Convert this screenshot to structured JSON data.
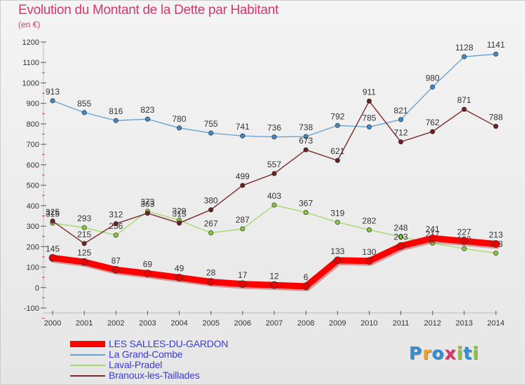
{
  "title": "Evolution du Montant de la Dette par Habitant",
  "unit": "(en €)",
  "logo": {
    "text": "Proxiti",
    "letters": [
      {
        "ch": "P",
        "color": "#2e8fd6"
      },
      {
        "ch": "r",
        "color": "#f2a22a"
      },
      {
        "ch": "o",
        "color": "#2e8fd6"
      },
      {
        "ch": "x",
        "color": "#d6386b"
      },
      {
        "ch": "i",
        "color": "#8cc63f"
      },
      {
        "ch": "t",
        "color": "#2e8fd6"
      },
      {
        "ch": "i",
        "color": "#8cc63f"
      }
    ]
  },
  "chart_data": {
    "type": "line",
    "title": "Evolution du Montant de la Dette par Habitant",
    "ylabel": "(en €)",
    "xlabel": "",
    "ylim": [
      -100,
      1200
    ],
    "yticks": [
      -100,
      0,
      100,
      200,
      300,
      400,
      500,
      600,
      700,
      800,
      900,
      1000,
      1100,
      1200
    ],
    "grid": false,
    "legend_position": "bottom-left",
    "categories": [
      "2000",
      "2001",
      "2002",
      "2003",
      "2004",
      "2005",
      "2006",
      "2007",
      "2008",
      "2009",
      "2010",
      "2011",
      "2012",
      "2013",
      "2014"
    ],
    "series": [
      {
        "name": "La Grand-Combe",
        "color": "#6aa3cf",
        "marker": "#3f8ac6",
        "width": 1.4,
        "values": [
          913,
          855,
          816,
          823,
          780,
          755,
          741,
          736,
          738,
          792,
          785,
          821,
          980,
          1128,
          1141
        ]
      },
      {
        "name": "Laval-Pradel",
        "color": "#a6da6e",
        "marker": "#86c83c",
        "width": 1.4,
        "values": [
          315,
          293,
          256,
          373,
          329,
          267,
          287,
          403,
          367,
          319,
          282,
          248,
          217,
          190,
          168
        ]
      },
      {
        "name": "Branoux-les-Taillades",
        "color": "#7a2a2a",
        "marker": "#6e1f1f",
        "width": 1.4,
        "values": [
          325,
          215,
          312,
          363,
          315,
          380,
          499,
          557,
          673,
          621,
          911,
          712,
          762,
          871,
          788
        ]
      },
      {
        "name": "LES SALLES-DU-GARDON",
        "color": "#ff0000",
        "marker": "#ee0000",
        "width": 9,
        "values": [
          145,
          125,
          87,
          69,
          49,
          28,
          17,
          12,
          6,
          133,
          130,
          203,
          241,
          227,
          213
        ]
      }
    ],
    "legend": [
      {
        "name": "LES SALLES-DU-GARDON",
        "color": "#ff0000",
        "thickness": 9
      },
      {
        "name": "La Grand-Combe",
        "color": "#6aa3cf",
        "thickness": 2
      },
      {
        "name": "Laval-Pradel",
        "color": "#a6da6e",
        "thickness": 2
      },
      {
        "name": "Branoux-les-Taillades",
        "color": "#7a2a2a",
        "thickness": 2
      }
    ]
  }
}
